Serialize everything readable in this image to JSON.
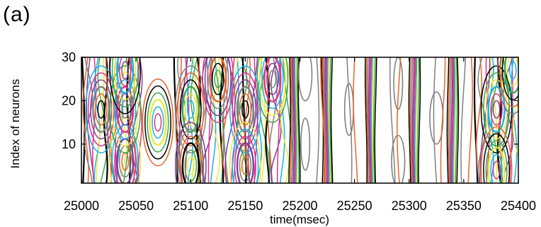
{
  "panel_label": "(a)",
  "chart_data": {
    "type": "contour",
    "xlabel": "time(msec)",
    "ylabel": "Index of neurons",
    "xlim": [
      25000,
      25400
    ],
    "ylim": [
      1,
      30
    ],
    "x_ticks": [
      25000,
      25050,
      25100,
      25150,
      25200,
      25250,
      25300,
      25350,
      25400
    ],
    "y_ticks": [
      10,
      20,
      30
    ],
    "contour_colors": [
      "#000000",
      "#e8642a",
      "#808080",
      "#7f3f98",
      "#e0338c",
      "#1ab2e8",
      "#eaea3a",
      "#3aa84a"
    ],
    "grid": false,
    "legend": "none"
  }
}
